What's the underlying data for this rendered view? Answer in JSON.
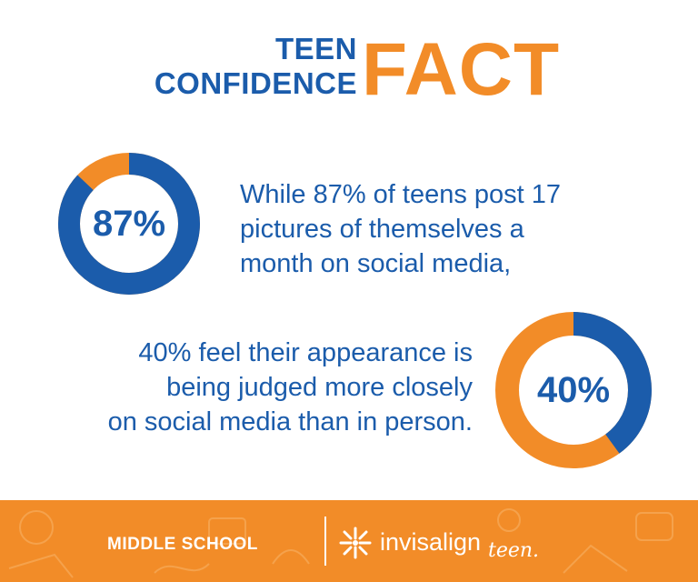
{
  "header": {
    "title_line1": "TEEN",
    "title_line2": "CONFIDENCE",
    "title_big": "FACT"
  },
  "stat1": {
    "percent": 87,
    "label": "87%",
    "text_lines": [
      "While 87% of teens post 17",
      "pictures of themselves a",
      "month on social media,"
    ]
  },
  "stat2": {
    "percent": 40,
    "label": "40%",
    "text_lines": [
      "40% feel their appearance is",
      "being judged more closely",
      "on social media than in person."
    ]
  },
  "footer": {
    "left_text": "MIDDLE SCHOOL",
    "logo_word": "invisalign",
    "logo_sub": "teen."
  },
  "colors": {
    "blue": "#1b5cab",
    "orange": "#f28c28",
    "white": "#ffffff"
  }
}
